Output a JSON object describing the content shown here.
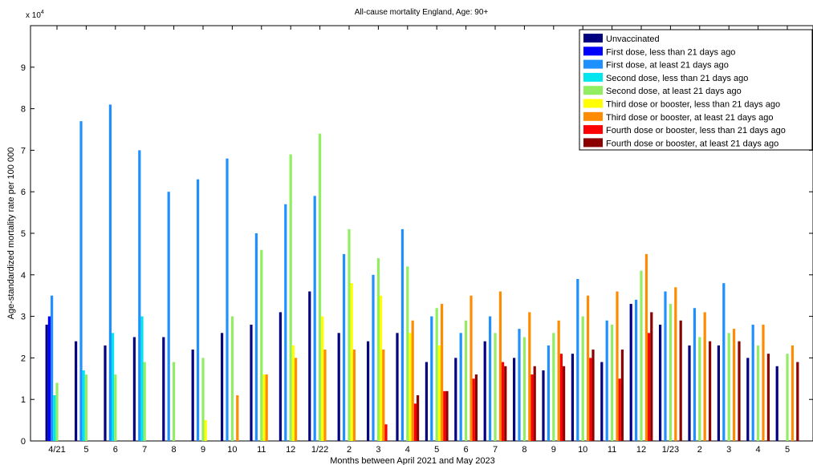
{
  "chart_data": {
    "type": "bar",
    "title": "All-cause mortality England, Age: 90+",
    "xlabel": "Months between April 2021 and May 2023",
    "ylabel": "Age-standardized mortality rate per 100 000",
    "exponent_label": "x 10",
    "exponent_power": "4",
    "ylim": [
      0,
      10
    ],
    "yticks": [
      "0",
      "1",
      "2",
      "3",
      "4",
      "5",
      "6",
      "7",
      "8",
      "9"
    ],
    "grid": false,
    "legend_position": "top-right",
    "categories": [
      "4/21",
      "5",
      "6",
      "7",
      "8",
      "9",
      "10",
      "11",
      "12",
      "1/22",
      "2",
      "3",
      "4",
      "5",
      "6",
      "7",
      "8",
      "9",
      "10",
      "11",
      "12",
      "1/23",
      "2",
      "3",
      "4",
      "5"
    ],
    "series": [
      {
        "name": "Unvaccinated",
        "color": "#000080",
        "values": [
          2.8,
          2.4,
          2.3,
          2.5,
          2.5,
          2.2,
          2.6,
          2.8,
          3.1,
          3.6,
          2.6,
          2.4,
          2.6,
          1.9,
          2.0,
          2.4,
          2.0,
          1.7,
          2.1,
          1.9,
          3.3,
          2.8,
          2.3,
          2.3,
          2.0,
          1.8
        ]
      },
      {
        "name": "First dose, less than 21 days ago",
        "color": "#0000ff",
        "values": [
          3.0,
          null,
          null,
          null,
          null,
          null,
          null,
          null,
          null,
          null,
          null,
          null,
          null,
          null,
          null,
          null,
          null,
          null,
          null,
          null,
          null,
          null,
          null,
          null,
          null,
          null
        ]
      },
      {
        "name": "First dose, at least 21 days ago",
        "color": "#1e90ff",
        "values": [
          3.5,
          7.7,
          8.1,
          7.0,
          6.0,
          6.3,
          6.8,
          5.0,
          5.7,
          5.9,
          4.5,
          4.0,
          5.1,
          3.0,
          2.6,
          3.0,
          2.7,
          2.3,
          3.9,
          2.9,
          3.4,
          3.6,
          3.2,
          3.8,
          2.8,
          null
        ]
      },
      {
        "name": "Second dose, less than 21 days ago",
        "color": "#00e5ee",
        "values": [
          1.1,
          1.7,
          2.6,
          3.0,
          null,
          null,
          null,
          null,
          null,
          null,
          null,
          null,
          null,
          null,
          null,
          null,
          null,
          null,
          null,
          null,
          null,
          null,
          null,
          null,
          null,
          null
        ]
      },
      {
        "name": "Second dose, at least 21 days ago",
        "color": "#90ee60",
        "values": [
          1.4,
          1.6,
          1.6,
          1.9,
          1.9,
          2.0,
          3.0,
          4.6,
          6.9,
          7.4,
          5.1,
          4.4,
          4.2,
          3.2,
          2.9,
          2.6,
          2.5,
          2.6,
          3.0,
          2.8,
          4.1,
          3.3,
          2.5,
          2.6,
          2.3,
          2.1
        ]
      },
      {
        "name": "Third dose or booster, less than 21 days ago",
        "color": "#ffff00",
        "values": [
          null,
          null,
          null,
          null,
          null,
          0.5,
          null,
          1.6,
          2.3,
          3.0,
          3.8,
          3.5,
          2.6,
          2.3,
          null,
          null,
          null,
          null,
          null,
          null,
          null,
          null,
          null,
          null,
          null,
          null
        ]
      },
      {
        "name": "Third dose or booster, at least 21 days ago",
        "color": "#ff8c00",
        "values": [
          null,
          null,
          null,
          null,
          null,
          null,
          1.1,
          1.6,
          2.0,
          2.2,
          2.2,
          2.2,
          2.9,
          3.3,
          3.5,
          3.6,
          3.1,
          2.9,
          3.5,
          3.6,
          4.5,
          3.7,
          3.1,
          2.7,
          2.8,
          2.3
        ]
      },
      {
        "name": "Fourth dose or booster, less than 21 days ago",
        "color": "#ff0000",
        "values": [
          null,
          null,
          null,
          null,
          null,
          null,
          null,
          null,
          null,
          null,
          null,
          0.4,
          0.9,
          1.2,
          1.5,
          1.9,
          1.6,
          2.1,
          2.0,
          1.5,
          2.6,
          null,
          null,
          null,
          null,
          null
        ]
      },
      {
        "name": "Fourth dose or booster, at least 21 days ago",
        "color": "#8b0000",
        "values": [
          null,
          null,
          null,
          null,
          null,
          null,
          null,
          null,
          null,
          null,
          null,
          null,
          1.1,
          1.2,
          1.6,
          1.8,
          1.8,
          1.8,
          2.2,
          2.2,
          3.1,
          2.9,
          2.4,
          2.4,
          2.1,
          1.9
        ]
      }
    ]
  }
}
